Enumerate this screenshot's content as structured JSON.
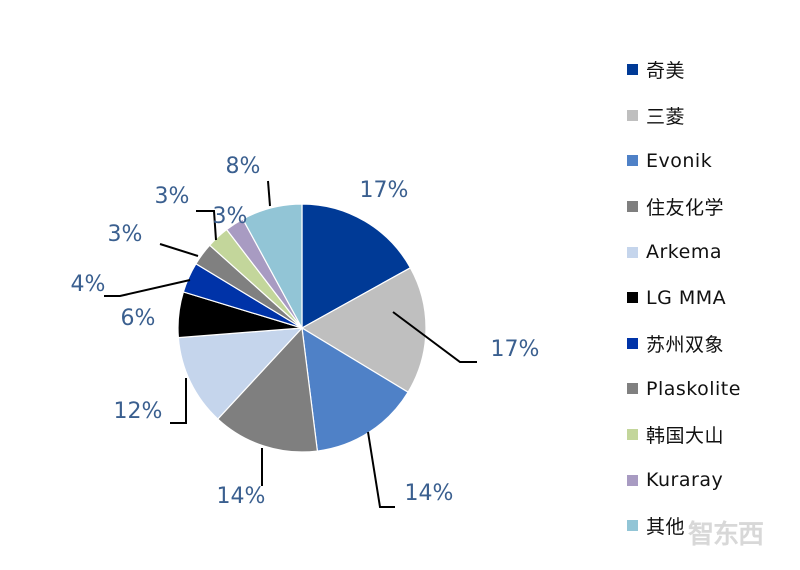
{
  "chart_data": {
    "type": "pie",
    "start_angle_deg": 90,
    "direction": "clockwise",
    "slices": [
      {
        "label": "奇美",
        "percent_label": "17%",
        "value": 17.1,
        "color": "#003a96"
      },
      {
        "label": "三菱",
        "percent_label": "17%",
        "value": 16.9,
        "color": "#bfbfbf"
      },
      {
        "label": "Evonik",
        "percent_label": "14%",
        "value": 14.5,
        "color": "#4f81c7"
      },
      {
        "label": "住友化学",
        "percent_label": "14%",
        "value": 14.0,
        "color": "#7f7f7f"
      },
      {
        "label": "Arkema",
        "percent_label": "12%",
        "value": 12.0,
        "color": "#c5d5ec"
      },
      {
        "label": "LG MMA",
        "percent_label": "6%",
        "value": 6.0,
        "color": "#000000"
      },
      {
        "label": "苏州双象",
        "percent_label": "4%",
        "value": 4.0,
        "color": "#0033a8"
      },
      {
        "label": "Plaskolite",
        "percent_label": "3%",
        "value": 3.0,
        "color": "#808080"
      },
      {
        "label": "韩国大山",
        "percent_label": "3%",
        "value": 3.0,
        "color": "#c3d69b"
      },
      {
        "label": "Kuraray",
        "percent_label": "3%",
        "value": 2.5,
        "color": "#a89bc2"
      },
      {
        "label": "其他",
        "percent_label": "8%",
        "value": 8.0,
        "color": "#92c5d6"
      }
    ]
  },
  "legend_items": [
    {
      "label": "奇美",
      "color": "#003a96"
    },
    {
      "label": "三菱",
      "color": "#bfbfbf"
    },
    {
      "label": "Evonik",
      "color": "#4f81c7"
    },
    {
      "label": "住友化学",
      "color": "#7f7f7f"
    },
    {
      "label": "Arkema",
      "color": "#c5d5ec"
    },
    {
      "label": "LG MMA",
      "color": "#000000"
    },
    {
      "label": "苏州双象",
      "color": "#0033a8"
    },
    {
      "label": "Plaskolite",
      "color": "#808080"
    },
    {
      "label": "韩国大山",
      "color": "#c3d69b"
    },
    {
      "label": "Kuraray",
      "color": "#a89bc2"
    },
    {
      "label": "其他",
      "color": "#92c5d6"
    }
  ],
  "label_color": "#3a5f8f",
  "watermark": "智东西"
}
